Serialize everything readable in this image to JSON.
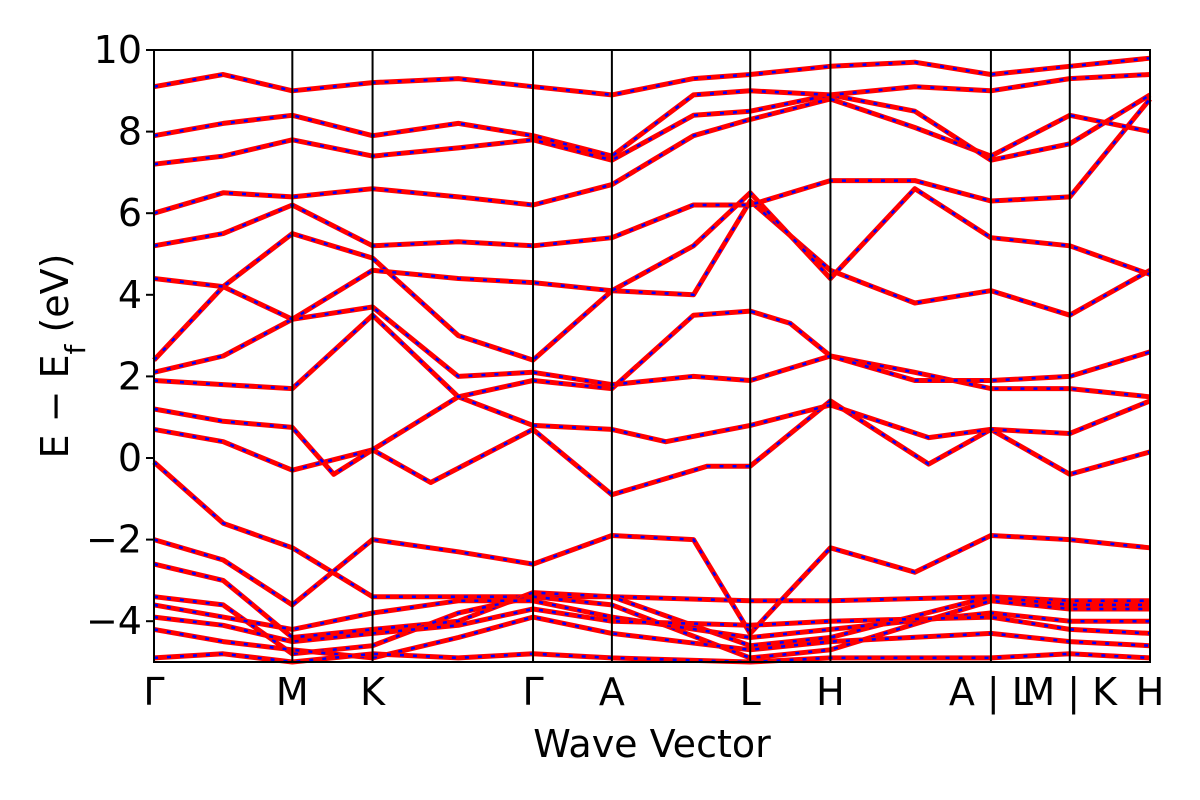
{
  "chart_data": {
    "type": "line",
    "title": "",
    "xlabel": "Wave Vector",
    "ylabel": {
      "base": "E − E",
      "sub": "f",
      "unit": " (eV)"
    },
    "ylim": [
      -5,
      10
    ],
    "yticks": [
      10,
      8,
      6,
      4,
      2,
      0,
      -2,
      -4
    ],
    "ytick_labels": [
      "10",
      "8",
      "6",
      "4",
      "2",
      "0",
      "−2",
      "−4"
    ],
    "k_points": [
      {
        "label": "Γ",
        "x": 0.0
      },
      {
        "label": "M",
        "x": 1.0
      },
      {
        "label": "K",
        "x": 1.58
      },
      {
        "label": "Γ",
        "x": 2.74
      },
      {
        "label": "A",
        "x": 3.31
      },
      {
        "label": "L",
        "x": 4.31
      },
      {
        "label": "H",
        "x": 4.89
      },
      {
        "label": "A | L",
        "x": 6.05
      },
      {
        "label": "M | K",
        "x": 6.62
      },
      {
        "label": "H",
        "x": 7.2
      }
    ],
    "colors": {
      "band_main": "#ff0000",
      "band_dashed": "#0000ff",
      "frame": "#000000"
    },
    "series": [
      {
        "points": [
          [
            0,
            -0.1
          ],
          [
            0.5,
            -1.6
          ],
          [
            1.0,
            -2.2
          ],
          [
            1.58,
            -3.4
          ],
          [
            2.74,
            -3.4
          ],
          [
            3.31,
            -3.4
          ],
          [
            4.31,
            -3.5
          ],
          [
            4.89,
            -3.5
          ],
          [
            6.05,
            -3.4
          ],
          [
            6.62,
            -3.5
          ],
          [
            7.2,
            -3.5
          ]
        ]
      },
      {
        "points": [
          [
            0,
            0.7
          ],
          [
            0.5,
            0.4
          ],
          [
            1.0,
            -0.3
          ],
          [
            1.58,
            0.2
          ],
          [
            2.0,
            -0.6
          ],
          [
            2.74,
            0.7
          ],
          [
            3.31,
            -0.9
          ],
          [
            4.0,
            -0.2
          ],
          [
            4.31,
            -0.2
          ],
          [
            4.89,
            1.4
          ],
          [
            5.6,
            -0.15
          ],
          [
            6.05,
            0.7
          ],
          [
            6.62,
            -0.4
          ],
          [
            7.2,
            0.15
          ]
        ]
      },
      {
        "points": [
          [
            0,
            1.2
          ],
          [
            0.5,
            0.9
          ],
          [
            1.0,
            0.75
          ],
          [
            1.3,
            -0.4
          ],
          [
            1.58,
            0.2
          ],
          [
            2.2,
            1.5
          ],
          [
            2.74,
            0.8
          ],
          [
            3.31,
            0.7
          ],
          [
            3.7,
            0.4
          ],
          [
            4.31,
            0.8
          ],
          [
            4.89,
            1.3
          ],
          [
            5.6,
            0.5
          ],
          [
            6.05,
            0.7
          ],
          [
            6.62,
            0.6
          ],
          [
            7.2,
            1.4
          ]
        ]
      },
      {
        "points": [
          [
            0,
            1.9
          ],
          [
            0.5,
            1.8
          ],
          [
            1.0,
            1.7
          ],
          [
            1.58,
            3.5
          ],
          [
            2.2,
            1.5
          ],
          [
            2.74,
            1.9
          ],
          [
            3.31,
            1.7
          ],
          [
            3.9,
            3.5
          ],
          [
            4.31,
            3.6
          ],
          [
            4.6,
            3.3
          ],
          [
            4.89,
            2.5
          ],
          [
            5.5,
            2.1
          ],
          [
            6.05,
            1.7
          ],
          [
            6.62,
            1.7
          ],
          [
            7.2,
            1.5
          ]
        ]
      },
      {
        "points": [
          [
            0,
            2.1
          ],
          [
            0.5,
            2.5
          ],
          [
            1.0,
            3.4
          ],
          [
            1.58,
            3.7
          ],
          [
            2.2,
            2.0
          ],
          [
            2.74,
            2.1
          ],
          [
            3.31,
            1.8
          ],
          [
            3.9,
            2.0
          ],
          [
            4.31,
            1.9
          ],
          [
            4.89,
            2.5
          ],
          [
            5.5,
            1.9
          ],
          [
            6.05,
            1.9
          ],
          [
            6.62,
            2.0
          ],
          [
            7.2,
            2.6
          ]
        ]
      },
      {
        "points": [
          [
            0,
            2.4
          ],
          [
            0.5,
            4.2
          ],
          [
            1.0,
            5.5
          ],
          [
            1.58,
            4.9
          ],
          [
            2.2,
            3.0
          ],
          [
            2.74,
            2.4
          ],
          [
            3.31,
            4.1
          ],
          [
            3.9,
            4.0
          ],
          [
            4.31,
            6.3
          ],
          [
            4.89,
            4.6
          ],
          [
            5.5,
            3.8
          ],
          [
            6.05,
            4.1
          ],
          [
            6.62,
            3.5
          ],
          [
            7.2,
            4.6
          ]
        ]
      },
      {
        "points": [
          [
            0,
            4.4
          ],
          [
            0.5,
            4.2
          ],
          [
            1.0,
            3.4
          ],
          [
            1.58,
            4.6
          ],
          [
            2.2,
            4.4
          ],
          [
            2.74,
            4.3
          ],
          [
            3.31,
            4.1
          ],
          [
            3.9,
            5.2
          ],
          [
            4.31,
            6.5
          ],
          [
            4.89,
            4.4
          ],
          [
            5.5,
            6.6
          ],
          [
            6.05,
            5.4
          ],
          [
            6.62,
            5.2
          ],
          [
            7.2,
            4.5
          ]
        ]
      },
      {
        "points": [
          [
            0,
            5.2
          ],
          [
            0.5,
            5.5
          ],
          [
            1.0,
            6.2
          ],
          [
            1.58,
            5.2
          ],
          [
            2.2,
            5.3
          ],
          [
            2.74,
            5.2
          ],
          [
            3.31,
            5.4
          ],
          [
            3.9,
            6.2
          ],
          [
            4.31,
            6.2
          ],
          [
            4.89,
            6.8
          ],
          [
            5.5,
            6.8
          ],
          [
            6.05,
            6.3
          ],
          [
            6.62,
            6.4
          ],
          [
            7.2,
            8.8
          ]
        ]
      },
      {
        "points": [
          [
            0,
            6.0
          ],
          [
            0.5,
            6.5
          ],
          [
            1.0,
            6.4
          ],
          [
            1.58,
            6.6
          ],
          [
            2.2,
            6.4
          ],
          [
            2.74,
            6.2
          ],
          [
            3.31,
            6.7
          ],
          [
            3.9,
            7.9
          ],
          [
            4.31,
            8.3
          ],
          [
            4.89,
            8.8
          ],
          [
            5.5,
            8.1
          ],
          [
            6.05,
            7.4
          ],
          [
            6.62,
            8.4
          ],
          [
            7.2,
            8.0
          ]
        ]
      },
      {
        "points": [
          [
            0,
            7.2
          ],
          [
            0.5,
            7.4
          ],
          [
            1.0,
            7.8
          ],
          [
            1.58,
            7.4
          ],
          [
            2.2,
            7.6
          ],
          [
            2.74,
            7.8
          ],
          [
            3.31,
            7.3
          ],
          [
            3.9,
            8.4
          ],
          [
            4.31,
            8.5
          ],
          [
            4.89,
            8.9
          ],
          [
            5.5,
            8.5
          ],
          [
            6.05,
            7.3
          ],
          [
            6.62,
            7.7
          ],
          [
            7.2,
            8.9
          ]
        ]
      },
      {
        "points": [
          [
            0,
            7.9
          ],
          [
            0.5,
            8.2
          ],
          [
            1.0,
            8.4
          ],
          [
            1.58,
            7.9
          ],
          [
            2.2,
            8.2
          ],
          [
            2.74,
            7.9
          ],
          [
            3.31,
            7.4
          ],
          [
            3.9,
            8.9
          ],
          [
            4.31,
            9.0
          ],
          [
            4.89,
            8.9
          ],
          [
            5.5,
            9.1
          ],
          [
            6.05,
            9.0
          ],
          [
            6.62,
            9.3
          ],
          [
            7.2,
            9.4
          ]
        ]
      },
      {
        "points": [
          [
            0,
            9.1
          ],
          [
            0.5,
            9.4
          ],
          [
            1.0,
            9.0
          ],
          [
            1.58,
            9.2
          ],
          [
            2.2,
            9.3
          ],
          [
            2.74,
            9.1
          ],
          [
            3.31,
            8.9
          ],
          [
            3.9,
            9.3
          ],
          [
            4.31,
            9.4
          ],
          [
            4.89,
            9.6
          ],
          [
            5.5,
            9.7
          ],
          [
            6.05,
            9.4
          ],
          [
            6.62,
            9.6
          ],
          [
            7.2,
            9.8
          ]
        ]
      },
      {
        "points": [
          [
            0,
            -2.0
          ],
          [
            0.5,
            -2.5
          ],
          [
            1.0,
            -3.6
          ],
          [
            1.58,
            -2.0
          ],
          [
            2.2,
            -2.3
          ],
          [
            2.74,
            -2.6
          ],
          [
            3.31,
            -1.9
          ],
          [
            3.9,
            -2.0
          ],
          [
            4.31,
            -4.3
          ],
          [
            4.89,
            -2.2
          ],
          [
            5.5,
            -2.8
          ],
          [
            6.05,
            -1.9
          ],
          [
            6.62,
            -2.0
          ],
          [
            7.2,
            -2.2
          ]
        ]
      },
      {
        "points": [
          [
            0,
            -2.6
          ],
          [
            0.5,
            -3.0
          ],
          [
            1.0,
            -4.4
          ],
          [
            1.58,
            -4.2
          ],
          [
            2.2,
            -4.0
          ],
          [
            2.74,
            -3.3
          ],
          [
            3.31,
            -3.4
          ],
          [
            4.31,
            -4.6
          ],
          [
            4.89,
            -4.4
          ],
          [
            6.05,
            -3.4
          ],
          [
            6.62,
            -3.6
          ],
          [
            7.2,
            -3.6
          ]
        ]
      },
      {
        "points": [
          [
            0,
            -3.4
          ],
          [
            0.5,
            -3.6
          ],
          [
            1.0,
            -4.8
          ],
          [
            1.58,
            -4.6
          ],
          [
            2.2,
            -3.8
          ],
          [
            2.74,
            -3.4
          ],
          [
            3.31,
            -3.6
          ],
          [
            4.31,
            -4.9
          ],
          [
            4.89,
            -4.7
          ],
          [
            6.05,
            -3.5
          ],
          [
            6.62,
            -3.7
          ],
          [
            7.2,
            -3.7
          ]
        ]
      },
      {
        "points": [
          [
            0,
            -3.6
          ],
          [
            0.5,
            -3.9
          ],
          [
            1.0,
            -4.2
          ],
          [
            1.58,
            -3.8
          ],
          [
            2.2,
            -3.5
          ],
          [
            2.74,
            -3.5
          ],
          [
            3.31,
            -3.9
          ],
          [
            4.31,
            -4.4
          ],
          [
            4.89,
            -4.2
          ],
          [
            6.05,
            -3.8
          ],
          [
            6.62,
            -4.0
          ],
          [
            7.2,
            -4.0
          ]
        ]
      },
      {
        "points": [
          [
            0,
            -3.9
          ],
          [
            0.5,
            -4.1
          ],
          [
            1.0,
            -4.5
          ],
          [
            1.58,
            -4.3
          ],
          [
            2.2,
            -4.1
          ],
          [
            2.74,
            -3.7
          ],
          [
            3.31,
            -4.0
          ],
          [
            4.31,
            -4.1
          ],
          [
            4.89,
            -4.0
          ],
          [
            6.05,
            -3.9
          ],
          [
            6.62,
            -4.2
          ],
          [
            7.2,
            -4.3
          ]
        ]
      },
      {
        "points": [
          [
            0,
            -4.2
          ],
          [
            0.5,
            -4.5
          ],
          [
            1.0,
            -4.7
          ],
          [
            1.58,
            -4.9
          ],
          [
            2.2,
            -4.4
          ],
          [
            2.74,
            -3.9
          ],
          [
            3.31,
            -4.3
          ],
          [
            4.31,
            -4.7
          ],
          [
            4.89,
            -4.5
          ],
          [
            6.05,
            -4.3
          ],
          [
            6.62,
            -4.5
          ],
          [
            7.2,
            -4.6
          ]
        ]
      },
      {
        "points": [
          [
            0,
            -4.9
          ],
          [
            0.5,
            -4.8
          ],
          [
            1.0,
            -5.0
          ],
          [
            1.58,
            -4.8
          ],
          [
            2.2,
            -4.9
          ],
          [
            2.74,
            -4.8
          ],
          [
            3.31,
            -4.9
          ],
          [
            4.31,
            -5.0
          ],
          [
            4.89,
            -4.9
          ],
          [
            6.05,
            -4.9
          ],
          [
            6.62,
            -4.8
          ],
          [
            7.2,
            -4.9
          ]
        ]
      }
    ]
  }
}
